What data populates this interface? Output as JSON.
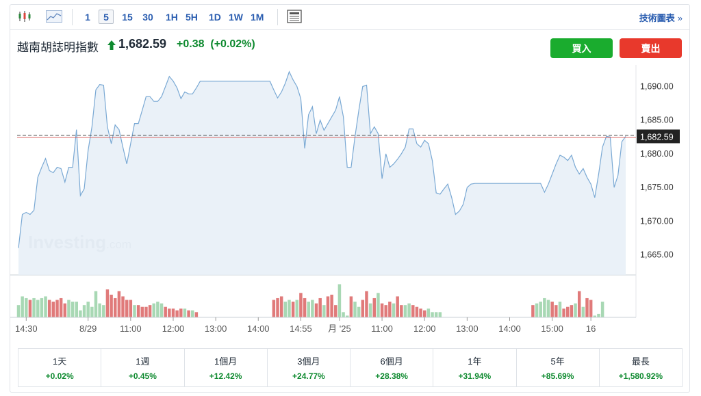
{
  "toolbar": {
    "chart_type_icons": [
      "candlestick-icon",
      "area-chart-icon"
    ],
    "timeframes": [
      "1",
      "5",
      "15",
      "30",
      "1H",
      "5H",
      "1D",
      "1W",
      "1M"
    ],
    "active_timeframe": "5",
    "news_icon": "newspaper-icon",
    "tech_chart_label": "技術圖表",
    "tech_chart_chevron": "»"
  },
  "instrument": {
    "name": "越南胡誌明指數",
    "direction_icon": "up-arrow-icon",
    "last": "1,682.59",
    "change": "+0.38",
    "change_pct": "(+0.02%)"
  },
  "actions": {
    "buy": "買入",
    "sell": "賣出"
  },
  "watermark": {
    "brand": "Investing",
    "suffix": ".com"
  },
  "colors": {
    "up": "#0e8a2f",
    "buy": "#1aac2e",
    "sell": "#e8392c",
    "line": "#7aa9d4",
    "area": "#e6eef7",
    "vol_up": "#a8d8b4",
    "vol_down": "#e07a7a",
    "last_line": "#d9534f"
  },
  "chart_data": {
    "type": "area",
    "ylim": [
      1662,
      1693
    ],
    "y_ticks": [
      "1,690.00",
      "1,685.00",
      "1,680.00",
      "1,675.00",
      "1,670.00",
      "1,665.00"
    ],
    "y_tick_values": [
      1690,
      1685,
      1680,
      1675,
      1670,
      1665
    ],
    "last_price_label": "1,682.59",
    "last_price": 1682.59,
    "x_tick_labels": [
      "14:30",
      "8/29",
      "11:00",
      "12:00",
      "13:00",
      "14:00",
      "14:55",
      "月 '25",
      "11:00",
      "12:00",
      "13:00",
      "14:00",
      "15:00",
      "16"
    ],
    "x_tick_index": [
      2,
      18,
      29,
      40,
      51,
      62,
      73,
      83,
      94,
      105,
      116,
      127,
      138,
      148
    ],
    "series": [
      {
        "values": [
          1666,
          1671,
          1671.3,
          1671,
          1671.6,
          1676.5,
          1678,
          1679.3,
          1677.5,
          1677.2,
          1678,
          1677.8,
          1675.8,
          1678,
          1678,
          1683.6,
          1673.8,
          1674.8,
          1680.5,
          1684,
          1689.5,
          1690.3,
          1690.2,
          1684,
          1681.5,
          1684.3,
          1683.6,
          1681,
          1678.5,
          1681.5,
          1684.5,
          1684.5,
          1686.5,
          1688.5,
          1688.5,
          1687.8,
          1687.8,
          1688.5,
          1690,
          1691.5,
          1690.8,
          1689.8,
          1688.2,
          1689.2,
          1688.9,
          1688.9,
          1689.8,
          1690.8,
          1690.8,
          1690.8,
          1690.8,
          1690.8,
          1690.8,
          1690.8,
          1690.8,
          1690.8,
          1690.8,
          1690.8,
          1690.8,
          1690.8,
          1690.8,
          1690.8,
          1690.8,
          1690.8,
          1690.8,
          1690.8,
          1689.5,
          1688.3,
          1689.2,
          1690.5,
          1692.2,
          1691,
          1690,
          1688.2,
          1680.8,
          1685.8,
          1687,
          1683,
          1685,
          1683.5,
          1684.5,
          1685.5,
          1686.5,
          1688.5,
          1685.5,
          1678,
          1678,
          1682.5,
          1686.5,
          1690,
          1690.2,
          1683,
          1684,
          1683,
          1676.3,
          1680,
          1678,
          1678.5,
          1679.2,
          1680,
          1681,
          1683.7,
          1683.7,
          1681.5,
          1681,
          1682,
          1681.5,
          1679,
          1674.2,
          1674,
          1674.8,
          1675.5,
          1673.5,
          1671,
          1671.5,
          1672.5,
          1675,
          1675.5,
          1675.6,
          1675.6,
          1675.6,
          1675.6,
          1675.6,
          1675.6,
          1675.6,
          1675.6,
          1675.6,
          1675.6,
          1675.6,
          1675.6,
          1675.6,
          1675.6,
          1675.6,
          1675.6,
          1675.6,
          1675.6,
          1674.3,
          1675.5,
          1677,
          1678.5,
          1679.8,
          1679.5,
          1679,
          1679.8,
          1678,
          1677,
          1677.8,
          1676.5,
          1675.5,
          1673.5,
          1677,
          1681,
          1682.6,
          1682.5,
          1675,
          1676.8,
          1681.8,
          1682.6
        ]
      }
    ],
    "volume": [
      {
        "v": 0.35,
        "c": "up"
      },
      {
        "v": 0.6,
        "c": "up"
      },
      {
        "v": 0.55,
        "c": "up"
      },
      {
        "v": 0.5,
        "c": "down"
      },
      {
        "v": 0.55,
        "c": "up"
      },
      {
        "v": 0.5,
        "c": "up"
      },
      {
        "v": 0.55,
        "c": "up"
      },
      {
        "v": 0.6,
        "c": "up"
      },
      {
        "v": 0.5,
        "c": "down"
      },
      {
        "v": 0.45,
        "c": "down"
      },
      {
        "v": 0.5,
        "c": "down"
      },
      {
        "v": 0.55,
        "c": "down"
      },
      {
        "v": 0.4,
        "c": "down"
      },
      {
        "v": 0.5,
        "c": "up"
      },
      {
        "v": 0.45,
        "c": "up"
      },
      {
        "v": 0.45,
        "c": "up"
      },
      {
        "v": 0.2,
        "c": "up"
      },
      {
        "v": 0.35,
        "c": "up"
      },
      {
        "v": 0.45,
        "c": "up"
      },
      {
        "v": 0.3,
        "c": "up"
      },
      {
        "v": 0.75,
        "c": "up"
      },
      {
        "v": 0.4,
        "c": "up"
      },
      {
        "v": 0.35,
        "c": "up"
      },
      {
        "v": 0.8,
        "c": "down"
      },
      {
        "v": 0.65,
        "c": "down"
      },
      {
        "v": 0.55,
        "c": "down"
      },
      {
        "v": 0.75,
        "c": "down"
      },
      {
        "v": 0.6,
        "c": "down"
      },
      {
        "v": 0.5,
        "c": "down"
      },
      {
        "v": 0.5,
        "c": "down"
      },
      {
        "v": 0.35,
        "c": "up"
      },
      {
        "v": 0.35,
        "c": "down"
      },
      {
        "v": 0.3,
        "c": "down"
      },
      {
        "v": 0.3,
        "c": "down"
      },
      {
        "v": 0.35,
        "c": "down"
      },
      {
        "v": 0.4,
        "c": "up"
      },
      {
        "v": 0.45,
        "c": "up"
      },
      {
        "v": 0.4,
        "c": "up"
      },
      {
        "v": 0.3,
        "c": "down"
      },
      {
        "v": 0.25,
        "c": "down"
      },
      {
        "v": 0.25,
        "c": "down"
      },
      {
        "v": 0.2,
        "c": "down"
      },
      {
        "v": 0.25,
        "c": "down"
      },
      {
        "v": 0.25,
        "c": "up"
      },
      {
        "v": 0.2,
        "c": "down"
      },
      {
        "v": 0.2,
        "c": "up"
      },
      {
        "v": 0.15,
        "c": "down"
      },
      {
        "v": 0.0,
        "c": "up"
      },
      {
        "v": 0.0,
        "c": "up"
      },
      {
        "v": 0.0,
        "c": "up"
      },
      {
        "v": 0.0,
        "c": "up"
      },
      {
        "v": 0.0,
        "c": "up"
      },
      {
        "v": 0.0,
        "c": "up"
      },
      {
        "v": 0.0,
        "c": "up"
      },
      {
        "v": 0.0,
        "c": "up"
      },
      {
        "v": 0.0,
        "c": "up"
      },
      {
        "v": 0.0,
        "c": "up"
      },
      {
        "v": 0.0,
        "c": "up"
      },
      {
        "v": 0.0,
        "c": "up"
      },
      {
        "v": 0.0,
        "c": "up"
      },
      {
        "v": 0.0,
        "c": "up"
      },
      {
        "v": 0.0,
        "c": "up"
      },
      {
        "v": 0.0,
        "c": "up"
      },
      {
        "v": 0.0,
        "c": "up"
      },
      {
        "v": 0.0,
        "c": "up"
      },
      {
        "v": 0.0,
        "c": "up"
      },
      {
        "v": 0.5,
        "c": "down"
      },
      {
        "v": 0.55,
        "c": "down"
      },
      {
        "v": 0.6,
        "c": "down"
      },
      {
        "v": 0.45,
        "c": "up"
      },
      {
        "v": 0.5,
        "c": "up"
      },
      {
        "v": 0.45,
        "c": "down"
      },
      {
        "v": 0.5,
        "c": "up"
      },
      {
        "v": 0.7,
        "c": "down"
      },
      {
        "v": 0.55,
        "c": "down"
      },
      {
        "v": 0.45,
        "c": "up"
      },
      {
        "v": 0.5,
        "c": "up"
      },
      {
        "v": 0.4,
        "c": "down"
      },
      {
        "v": 0.55,
        "c": "down"
      },
      {
        "v": 0.35,
        "c": "up"
      },
      {
        "v": 0.6,
        "c": "down"
      },
      {
        "v": 0.65,
        "c": "down"
      },
      {
        "v": 0.35,
        "c": "down"
      },
      {
        "v": 0.95,
        "c": "up"
      },
      {
        "v": 0.15,
        "c": "up"
      },
      {
        "v": 0.05,
        "c": "up"
      },
      {
        "v": 0.6,
        "c": "down"
      },
      {
        "v": 0.45,
        "c": "up"
      },
      {
        "v": 0.3,
        "c": "up"
      },
      {
        "v": 0.5,
        "c": "down"
      },
      {
        "v": 0.75,
        "c": "down"
      },
      {
        "v": 0.4,
        "c": "up"
      },
      {
        "v": 0.55,
        "c": "down"
      },
      {
        "v": 0.7,
        "c": "up"
      },
      {
        "v": 0.4,
        "c": "down"
      },
      {
        "v": 0.35,
        "c": "down"
      },
      {
        "v": 0.45,
        "c": "down"
      },
      {
        "v": 0.4,
        "c": "up"
      },
      {
        "v": 0.6,
        "c": "down"
      },
      {
        "v": 0.35,
        "c": "down"
      },
      {
        "v": 0.35,
        "c": "up"
      },
      {
        "v": 0.4,
        "c": "up"
      },
      {
        "v": 0.35,
        "c": "down"
      },
      {
        "v": 0.3,
        "c": "down"
      },
      {
        "v": 0.25,
        "c": "down"
      },
      {
        "v": 0.2,
        "c": "down"
      },
      {
        "v": 0.25,
        "c": "up"
      },
      {
        "v": 0.15,
        "c": "up"
      },
      {
        "v": 0.15,
        "c": "up"
      },
      {
        "v": 0.15,
        "c": "up"
      },
      {
        "v": 0.0,
        "c": "up"
      },
      {
        "v": 0.0,
        "c": "up"
      },
      {
        "v": 0.0,
        "c": "up"
      },
      {
        "v": 0.0,
        "c": "up"
      },
      {
        "v": 0.0,
        "c": "up"
      },
      {
        "v": 0.0,
        "c": "up"
      },
      {
        "v": 0.0,
        "c": "up"
      },
      {
        "v": 0.0,
        "c": "up"
      },
      {
        "v": 0.0,
        "c": "up"
      },
      {
        "v": 0.0,
        "c": "up"
      },
      {
        "v": 0.0,
        "c": "up"
      },
      {
        "v": 0.0,
        "c": "up"
      },
      {
        "v": 0.0,
        "c": "up"
      },
      {
        "v": 0.0,
        "c": "up"
      },
      {
        "v": 0.0,
        "c": "up"
      },
      {
        "v": 0.0,
        "c": "up"
      },
      {
        "v": 0.0,
        "c": "up"
      },
      {
        "v": 0.0,
        "c": "up"
      },
      {
        "v": 0.0,
        "c": "up"
      },
      {
        "v": 0.0,
        "c": "up"
      },
      {
        "v": 0.0,
        "c": "up"
      },
      {
        "v": 0.0,
        "c": "up"
      },
      {
        "v": 0.0,
        "c": "up"
      },
      {
        "v": 0.35,
        "c": "down"
      },
      {
        "v": 0.4,
        "c": "up"
      },
      {
        "v": 0.45,
        "c": "up"
      },
      {
        "v": 0.55,
        "c": "up"
      },
      {
        "v": 0.5,
        "c": "up"
      },
      {
        "v": 0.45,
        "c": "down"
      },
      {
        "v": 0.35,
        "c": "down"
      },
      {
        "v": 0.45,
        "c": "up"
      },
      {
        "v": 0.25,
        "c": "down"
      },
      {
        "v": 0.3,
        "c": "down"
      },
      {
        "v": 0.35,
        "c": "down"
      },
      {
        "v": 0.4,
        "c": "up"
      },
      {
        "v": 0.75,
        "c": "down"
      },
      {
        "v": 0.3,
        "c": "up"
      },
      {
        "v": 0.55,
        "c": "down"
      },
      {
        "v": 0.5,
        "c": "down"
      },
      {
        "v": 0.05,
        "c": "up"
      },
      {
        "v": 0.1,
        "c": "up"
      },
      {
        "v": 0.45,
        "c": "up"
      }
    ]
  },
  "periods": [
    {
      "label": "1天",
      "value": "+0.02%"
    },
    {
      "label": "1週",
      "value": "+0.45%"
    },
    {
      "label": "1個月",
      "value": "+12.42%"
    },
    {
      "label": "3個月",
      "value": "+24.77%"
    },
    {
      "label": "6個月",
      "value": "+28.38%"
    },
    {
      "label": "1年",
      "value": "+31.94%"
    },
    {
      "label": "5年",
      "value": "+85.69%"
    },
    {
      "label": "最長",
      "value": "+1,580.92%"
    }
  ]
}
